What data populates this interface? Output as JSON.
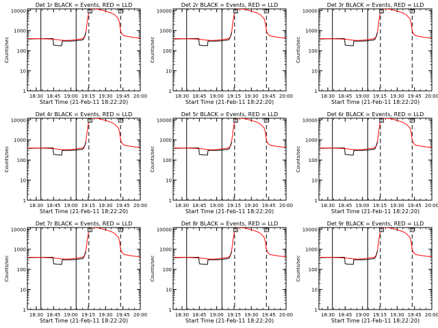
{
  "figure": {
    "background": "#ffffff"
  },
  "panel_titles": [
    "Det 1r BLACK = Events, RED = LLD",
    "Det 2r BLACK = Events, RED = LLD",
    "Det 3r BLACK = Events, RED = LLD",
    "Det 4r BLACK = Events, RED = LLD",
    "Det 5r BLACK = Events, RED = LLD",
    "Det 6r BLACK = Events, RED = LLD",
    "Det 7r BLACK = Events, RED = LLD",
    "Det 8r BLACK = Events, RED = LLD",
    "Det 9r BLACK = Events, RED = LLD"
  ],
  "chart_data": {
    "type": "line",
    "layout": "3x3 grid of identical panels",
    "xlabel": "Start Time (21-Feb-11 18:22:20)",
    "ylabel": "Counts/sec",
    "x_ticks": [
      "18:30",
      "18:45",
      "19:00",
      "19:15",
      "19:30",
      "19:45",
      "20:00"
    ],
    "x_tick_minutes": [
      30,
      45,
      60,
      75,
      90,
      105,
      120
    ],
    "xlim_minutes": [
      22.33,
      120
    ],
    "y_scale": "log",
    "ylim": [
      1,
      12000
    ],
    "y_ticks": [
      1,
      10,
      100,
      1000,
      10000
    ],
    "y_tick_labels": [
      "1",
      "10",
      "100",
      "1000",
      "10000"
    ],
    "series_colors": {
      "events": "#000000",
      "lld": "#ff0000"
    },
    "vertical_lines": [
      {
        "minute": 34.0,
        "style": "solid"
      },
      {
        "minute": 64.5,
        "style": "solid"
      },
      {
        "minute": 75.5,
        "style": "dashed"
      },
      {
        "minute": 103.0,
        "style": "dashed"
      }
    ],
    "markers": [
      {
        "label": "O",
        "minute": 76.5
      },
      {
        "label": "P",
        "minute": 103.0
      }
    ],
    "series": [
      {
        "name": "BLACK = Events",
        "color": "#000000",
        "x": [
          23,
          30,
          38,
          44.5,
          45,
          48,
          52,
          52.5,
          60,
          64,
          66,
          68,
          70,
          71,
          71.8
        ],
        "y": [
          380,
          390,
          400,
          400,
          190,
          180,
          175,
          300,
          300,
          310,
          320,
          330,
          340,
          380,
          500
        ]
      },
      {
        "name": "RED = LLD",
        "color": "#ff0000",
        "x": [
          23,
          30,
          40,
          45,
          48,
          52,
          56,
          60,
          64,
          66,
          68,
          70,
          72,
          73,
          74,
          75,
          76,
          77,
          80,
          84,
          88,
          91,
          95,
          98,
          100,
          101,
          102,
          103,
          104,
          106,
          110,
          115,
          120
        ],
        "y": [
          400,
          395,
          385,
          370,
          355,
          330,
          320,
          330,
          350,
          370,
          380,
          390,
          500,
          900,
          2500,
          6000,
          10000,
          12000,
          12000,
          11500,
          10000,
          9000,
          7500,
          6000,
          4500,
          4000,
          2500,
          1000,
          700,
          550,
          500,
          450,
          430
        ]
      }
    ]
  }
}
